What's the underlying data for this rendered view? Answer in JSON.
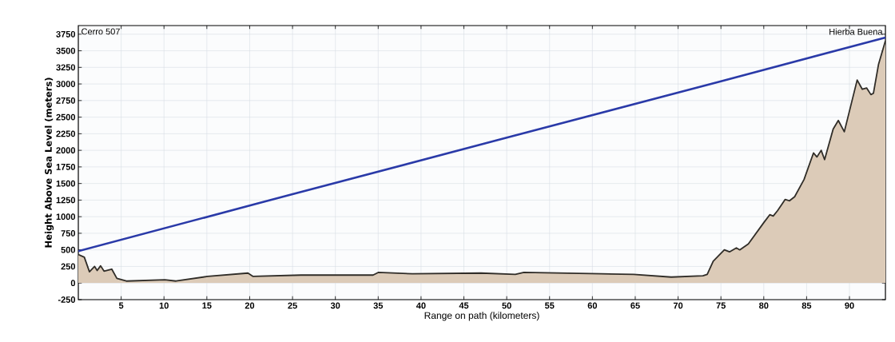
{
  "chart_data": {
    "type": "area",
    "xlabel": "Range on path (kilometers)",
    "ylabel": "Height Above Sea Level (meters)",
    "annotations": [
      "Cerro 507",
      "Hierba Buena"
    ],
    "series": [
      {
        "color": "#dccbb8",
        "x": [
          0.0,
          0.7,
          1.3,
          1.9,
          2.2,
          2.6,
          3.0,
          3.9,
          4.5,
          5.6,
          10.1,
          11.4,
          15.1,
          19.8,
          20.4,
          26,
          34.4,
          35,
          39,
          47,
          51,
          52,
          61,
          64.8,
          69.2,
          72.9,
          73.4,
          74.1,
          75.4,
          76.0,
          76.8,
          77.2,
          78.2,
          80.0,
          80.7,
          81.1,
          81.6,
          82.5,
          83.0,
          83.6,
          84.7,
          85.8,
          86.2,
          86.7,
          87.1,
          88.1,
          88.7,
          89.4,
          90.9,
          91.5,
          92.0,
          92.5,
          92.8,
          93.4,
          94.2
        ],
        "values": [
          430,
          390,
          170,
          250,
          190,
          260,
          180,
          210,
          70,
          30,
          50,
          30,
          100,
          150,
          100,
          120,
          120,
          160,
          140,
          150,
          130,
          160,
          140,
          130,
          90,
          110,
          130,
          330,
          500,
          470,
          530,
          500,
          590,
          910,
          1030,
          1010,
          1090,
          1260,
          1240,
          1300,
          1560,
          1960,
          1900,
          2000,
          1860,
          2320,
          2450,
          2280,
          3060,
          2920,
          2940,
          2840,
          2860,
          3300,
          3650
        ]
      },
      {
        "type": "line",
        "color": "#2a3aa8",
        "x": [
          0,
          25,
          50,
          75,
          94.2
        ],
        "values": [
          480,
          1340,
          2190,
          3040,
          3700
        ]
      }
    ],
    "xlim": [
      0,
      94.2
    ],
    "ylim": [
      -250,
      3880
    ],
    "xticks": [
      5,
      10,
      15,
      20,
      25,
      30,
      35,
      40,
      45,
      50,
      55,
      60,
      65,
      70,
      75,
      80,
      85,
      90
    ],
    "yticks": [
      -250,
      0,
      250,
      500,
      750,
      1000,
      1250,
      1500,
      1750,
      2000,
      2250,
      2500,
      2750,
      3000,
      3250,
      3500,
      3750
    ],
    "grid": true
  }
}
